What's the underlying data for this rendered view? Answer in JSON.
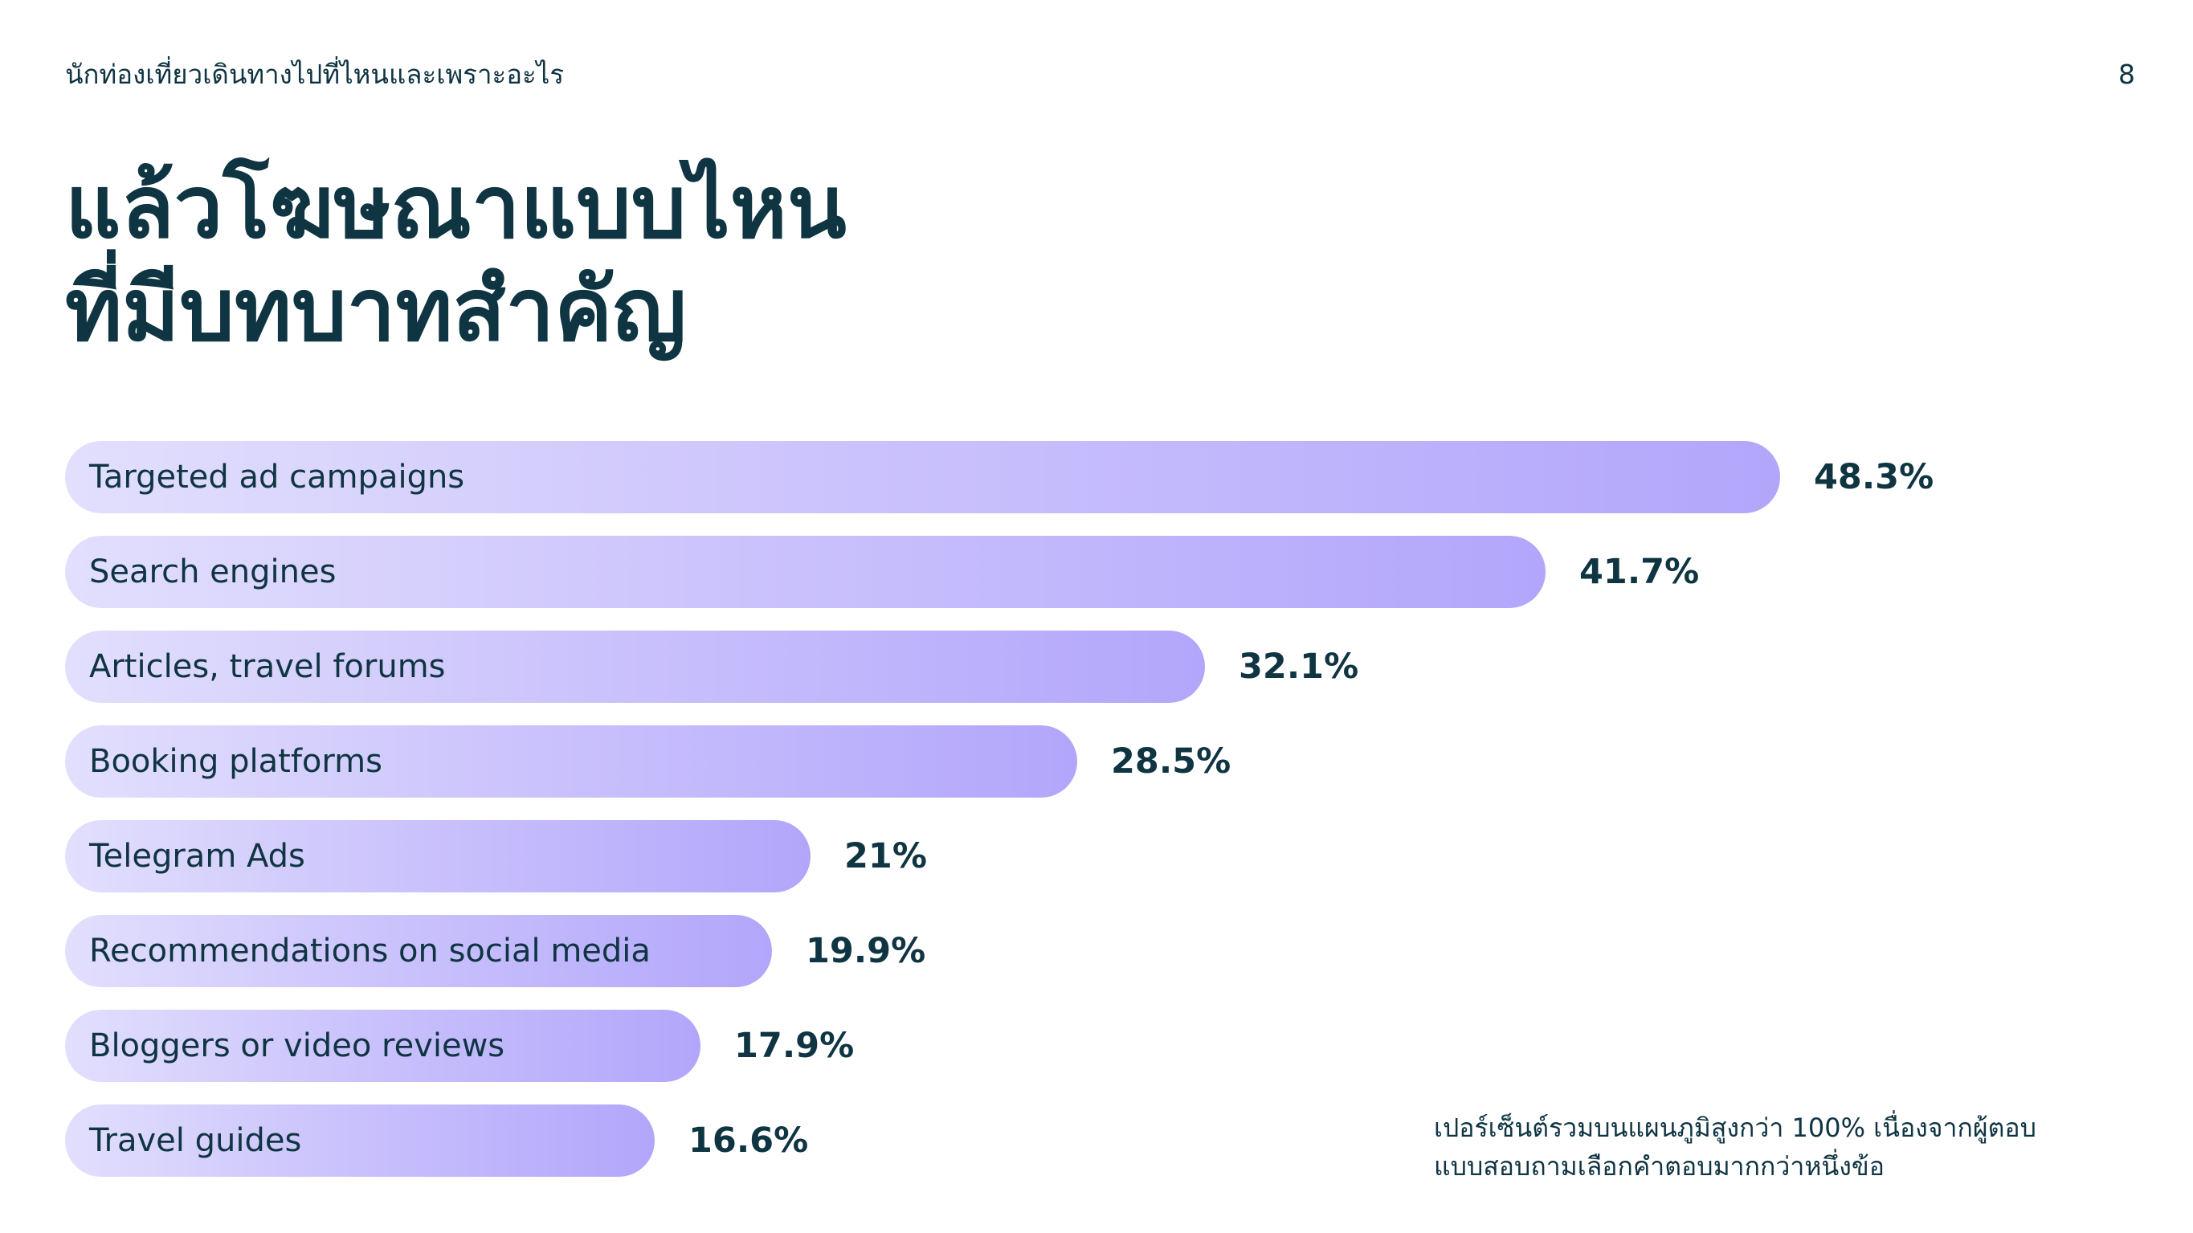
{
  "header": {
    "subtitle": "นักท่องเที่ยวเดินทางไปที่ไหนและเพราะอะไร",
    "page_number": "8"
  },
  "title": {
    "line1": "แล้วโฆษณาแบบไหน",
    "line2": "ที่มีบทบาทสำคัญ"
  },
  "chart_data": {
    "type": "bar",
    "orientation": "horizontal",
    "categories": [
      "Targeted ad campaigns",
      "Search engines",
      "Articles, travel forums",
      "Booking platforms",
      "Telegram Ads",
      "Recommendations on social media",
      "Bloggers or video reviews",
      "Travel guides"
    ],
    "values": [
      48.3,
      41.7,
      32.1,
      28.5,
      21,
      19.9,
      17.9,
      16.6
    ],
    "value_labels": [
      "48.3%",
      "41.7%",
      "32.1%",
      "28.5%",
      "21%",
      "19.9%",
      "17.9%",
      "16.6%"
    ],
    "unit": "%",
    "xlim": [
      0,
      100
    ],
    "grid": false,
    "bar_gradient": [
      "#e2dffd",
      "#b2a6fb"
    ],
    "text_color": "#0f3442"
  },
  "footnote": {
    "line1": "เปอร์เซ็นต์รวมบนแผนภูมิสูงกว่า 100% เนื่องจากผู้ตอบ",
    "line2": "แบบสอบถามเลือกคำตอบมากกว่าหนึ่งข้อ"
  }
}
